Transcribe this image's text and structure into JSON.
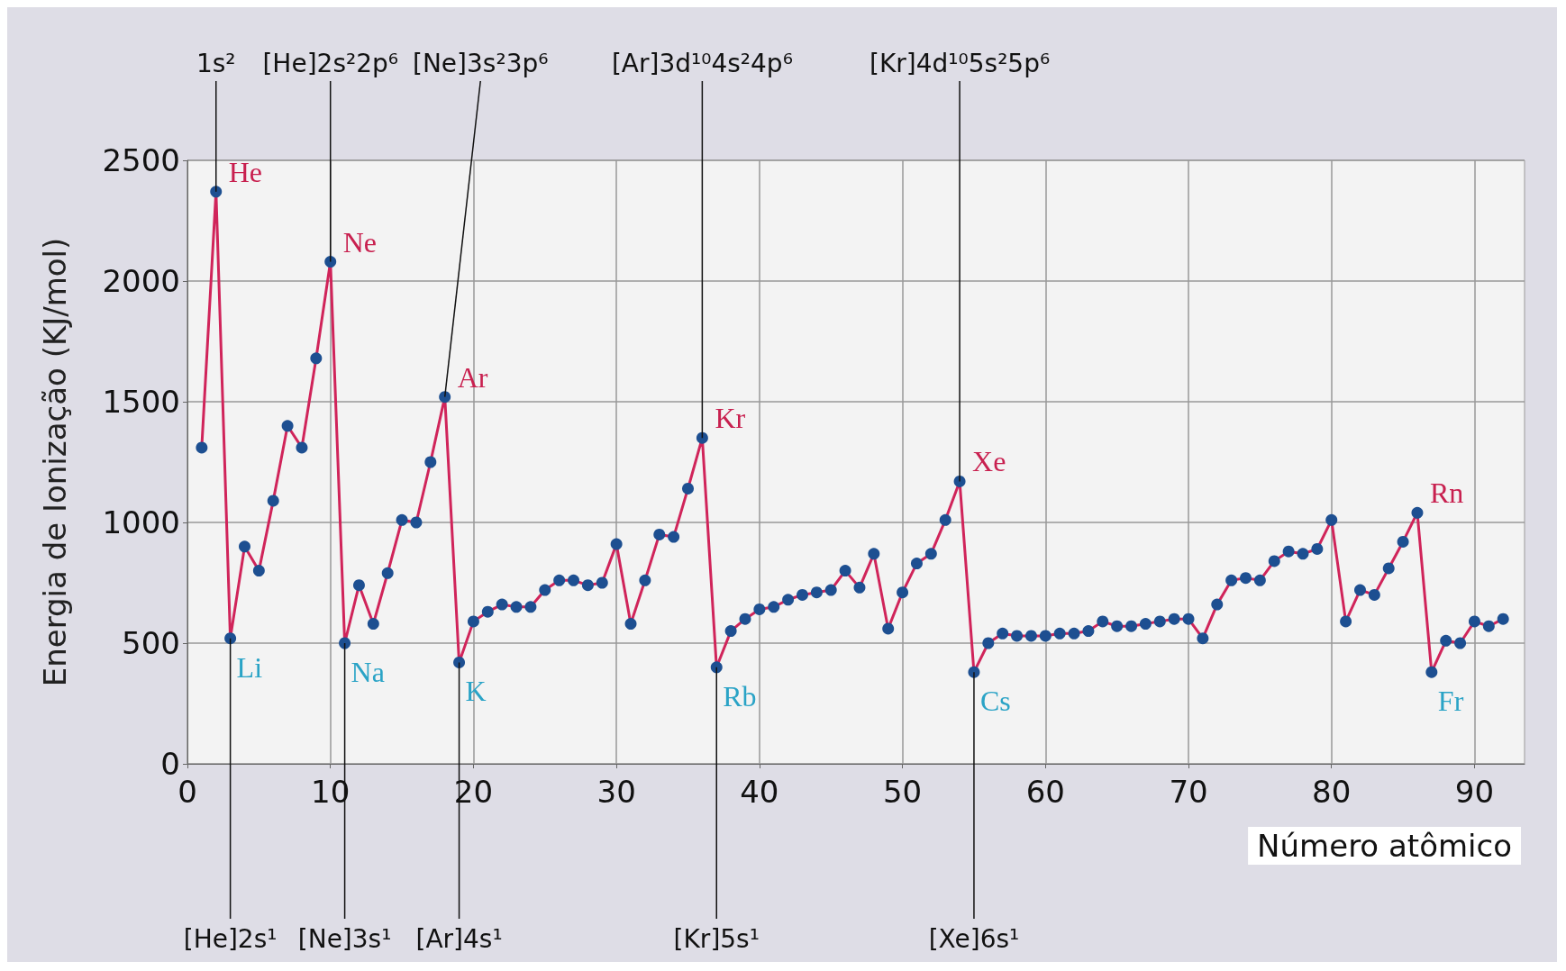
{
  "chart_data": {
    "type": "line",
    "xlabel": "Número atômico",
    "ylabel": "Energia de Ionização (KJ/mol)",
    "x": [
      1,
      2,
      3,
      4,
      5,
      6,
      7,
      8,
      9,
      10,
      11,
      12,
      13,
      14,
      15,
      16,
      17,
      18,
      19,
      20,
      21,
      22,
      23,
      24,
      25,
      26,
      27,
      28,
      29,
      30,
      31,
      32,
      33,
      34,
      35,
      36,
      37,
      38,
      39,
      40,
      41,
      42,
      43,
      44,
      45,
      46,
      47,
      48,
      49,
      50,
      51,
      52,
      53,
      54,
      55,
      56,
      57,
      58,
      59,
      60,
      61,
      62,
      63,
      64,
      65,
      66,
      67,
      68,
      69,
      70,
      71,
      72,
      73,
      74,
      75,
      76,
      77,
      78,
      79,
      80,
      81,
      82,
      83,
      84,
      85,
      86,
      87,
      88,
      89,
      90,
      91,
      92
    ],
    "series": [
      {
        "color": "#d0245a",
        "values": [
          1310,
          2370,
          520,
          900,
          800,
          1090,
          1400,
          1310,
          1680,
          2080,
          500,
          740,
          580,
          790,
          1010,
          1000,
          1250,
          1520,
          420,
          590,
          630,
          660,
          650,
          650,
          720,
          760,
          760,
          740,
          750,
          910,
          580,
          760,
          950,
          940,
          1140,
          1350,
          400,
          550,
          600,
          640,
          650,
          680,
          700,
          710,
          720,
          800,
          730,
          870,
          560,
          710,
          830,
          870,
          1010,
          1170,
          380,
          500,
          540,
          530,
          530,
          530,
          540,
          540,
          550,
          590,
          570,
          570,
          580,
          590,
          600,
          600,
          520,
          660,
          760,
          770,
          760,
          840,
          880,
          870,
          890,
          1010,
          590,
          720,
          700,
          810,
          920,
          1040,
          380,
          510,
          500,
          590,
          570,
          600
        ]
      }
    ],
    "xlim": [
      0,
      93.5
    ],
    "xticks": [
      0,
      10,
      20,
      30,
      40,
      50,
      60,
      70,
      80,
      90
    ],
    "ylim": [
      0,
      2500
    ],
    "yticks": [
      0,
      500,
      1000,
      1500,
      2000,
      2500
    ],
    "grid": true,
    "marker": "circle",
    "line_style": "solid",
    "annotations": [
      {
        "text": "He",
        "x": 2,
        "y": 2370
      },
      {
        "text": "1s²",
        "x": 2,
        "y": 2370
      },
      {
        "text": "Ne",
        "x": 10,
        "y": 2080
      },
      {
        "text": "[He]2s²2p⁶",
        "x": 10,
        "y": 2080
      },
      {
        "text": "Ar",
        "x": 18,
        "y": 1520
      },
      {
        "text": "[Ne]3s²3p⁶",
        "x": 18,
        "y": 1520
      },
      {
        "text": "Kr",
        "x": 36,
        "y": 1350
      },
      {
        "text": "[Ar]3d¹⁰4s²4p⁶",
        "x": 36,
        "y": 1350
      },
      {
        "text": "Xe",
        "x": 54,
        "y": 1170
      },
      {
        "text": "[Kr]4d¹⁰5s²5p⁶",
        "x": 54,
        "y": 1170
      },
      {
        "text": "Rn",
        "x": 86,
        "y": 1040
      },
      {
        "text": "Li",
        "x": 3,
        "y": 520
      },
      {
        "text": "[He]2s¹",
        "x": 3,
        "y": 520
      },
      {
        "text": "Na",
        "x": 11,
        "y": 500
      },
      {
        "text": "[Ne]3s¹",
        "x": 11,
        "y": 500
      },
      {
        "text": "K",
        "x": 19,
        "y": 420
      },
      {
        "text": "[Ar]4s¹",
        "x": 19,
        "y": 420
      },
      {
        "text": "Rb",
        "x": 37,
        "y": 400
      },
      {
        "text": "[Kr]5s¹",
        "x": 37,
        "y": 400
      },
      {
        "text": "Cs",
        "x": 55,
        "y": 380
      },
      {
        "text": "[Xe]6s¹",
        "x": 55,
        "y": 380
      },
      {
        "text": "Fr",
        "x": 87,
        "y": 380
      }
    ]
  }
}
